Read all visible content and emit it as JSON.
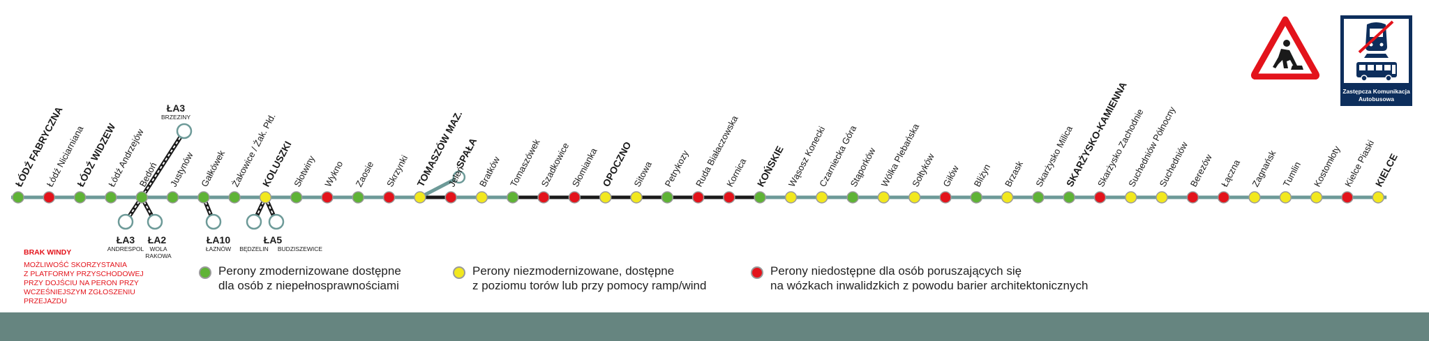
{
  "stations": [
    {
      "name": "ŁÓDŹ FABRYCZNA",
      "status": "green",
      "bold": true
    },
    {
      "name": "Łódź Niciarniana",
      "status": "red",
      "bold": false
    },
    {
      "name": "ŁÓDŹ WIDZEW",
      "status": "green",
      "bold": true
    },
    {
      "name": "Łódź Andrzejów",
      "status": "green",
      "bold": false
    },
    {
      "name": "Bedoń",
      "status": "green",
      "bold": false
    },
    {
      "name": "Justynów",
      "status": "green",
      "bold": false
    },
    {
      "name": "Gałkówek",
      "status": "green",
      "bold": false
    },
    {
      "name": "Żakowice / Żak. Płd.",
      "status": "green",
      "bold": false
    },
    {
      "name": "KOLUSZKI",
      "status": "yellow",
      "bold": true
    },
    {
      "name": "Słotwiny",
      "status": "green",
      "bold": false
    },
    {
      "name": "Wykno",
      "status": "red",
      "bold": false
    },
    {
      "name": "Zaosie",
      "status": "green",
      "bold": false
    },
    {
      "name": "Skrzynki",
      "status": "red",
      "bold": false
    },
    {
      "name": "TOMASZÓW MAZ.",
      "status": "yellow",
      "bold": true
    },
    {
      "name": "Jeleń",
      "status": "red",
      "bold": false
    },
    {
      "name": "Bratków",
      "status": "yellow",
      "bold": false
    },
    {
      "name": "Tomaszówek",
      "status": "green",
      "bold": false
    },
    {
      "name": "Szadkowice",
      "status": "red",
      "bold": false
    },
    {
      "name": "Słomianka",
      "status": "red",
      "bold": false
    },
    {
      "name": "OPOCZNO",
      "status": "yellow",
      "bold": true
    },
    {
      "name": "Sitowa",
      "status": "yellow",
      "bold": false
    },
    {
      "name": "Petrykozy",
      "status": "green",
      "bold": false
    },
    {
      "name": "Ruda Białaczowska",
      "status": "red",
      "bold": false
    },
    {
      "name": "Kornica",
      "status": "red",
      "bold": false
    },
    {
      "name": "KOŃSKIE",
      "status": "green",
      "bold": true
    },
    {
      "name": "Wąsosz Konecki",
      "status": "yellow",
      "bold": false
    },
    {
      "name": "Czarniecka Góra",
      "status": "yellow",
      "bold": false
    },
    {
      "name": "Stąporków",
      "status": "green",
      "bold": false
    },
    {
      "name": "Wólka Plebańska",
      "status": "yellow",
      "bold": false
    },
    {
      "name": "Sołtyków",
      "status": "yellow",
      "bold": false
    },
    {
      "name": "Giłów",
      "status": "red",
      "bold": false
    },
    {
      "name": "Bliżyn",
      "status": "green",
      "bold": false
    },
    {
      "name": "Brzask",
      "status": "yellow",
      "bold": false
    },
    {
      "name": "Skarżysko Milica",
      "status": "green",
      "bold": false
    },
    {
      "name": "SKARŻYSKO-KAMIENNA",
      "status": "green",
      "bold": true
    },
    {
      "name": "Skarżysko Zachodnie",
      "status": "red",
      "bold": false
    },
    {
      "name": "Suchedniów Północny",
      "status": "yellow",
      "bold": false
    },
    {
      "name": "Suchedniów",
      "status": "yellow",
      "bold": false
    },
    {
      "name": "Berezów",
      "status": "red",
      "bold": false
    },
    {
      "name": "Łączna",
      "status": "red",
      "bold": false
    },
    {
      "name": "Zagnańsk",
      "status": "yellow",
      "bold": false
    },
    {
      "name": "Tumlin",
      "status": "yellow",
      "bold": false
    },
    {
      "name": "Kostomłoty",
      "status": "yellow",
      "bold": false
    },
    {
      "name": "Kielce Piaski",
      "status": "red",
      "bold": false
    },
    {
      "name": "KIELCE",
      "status": "yellow",
      "bold": true
    }
  ],
  "branch_spala": {
    "name": "SPAŁA"
  },
  "connections": [
    {
      "code": "ŁA3",
      "dest": "BRZEZINY"
    },
    {
      "code": "ŁA3",
      "dest": "ANDRESPOL"
    },
    {
      "code": "ŁA2",
      "dest": "WOLA RAKOWA"
    },
    {
      "code": "ŁA10",
      "dest": "ŁAZNÓW"
    },
    {
      "code": "ŁA5",
      "dest_1": "BĘDZELIN",
      "dest_2": "BUDZISZEWICE"
    }
  ],
  "warning_note": {
    "title": "BRAK WINDY",
    "lines": [
      "MOŻLIWOŚĆ SKORZYSTANIA",
      "Z PLATFORMY PRZYSCHODOWEJ",
      "PRZY DOJŚCIU NA PERON PRZY",
      "WCZEŚNIEJSZYM ZGŁOSZENIU",
      "PRZEJAZDU"
    ]
  },
  "legend": [
    {
      "color": "#5fb336",
      "line1": "Perony zmodernizowane dostępne",
      "line2": "dla osób z niepełnosprawnościami"
    },
    {
      "color": "#f2e81e",
      "line1": "Perony niezmodernizowane, dostępne",
      "line2": "z poziomu torów lub przy pomocy ramp/wind"
    },
    {
      "color": "#e3131b",
      "line1": "Perony niedostępne dla osób poruszających się",
      "line2": "na wózkach inwalidzkich z powodu barier architektonicznych"
    }
  ],
  "bus_sign": {
    "line1": "Zastępcza Komunikacja",
    "line2": "Autobusowa"
  },
  "icons": {
    "warning": "roadworks-warning-icon",
    "train": "train-crossed-icon",
    "bus": "bus-icon"
  },
  "colors": {
    "green": "#5fb336",
    "yellow": "#f2e81e",
    "red": "#e3131b",
    "line_teal": "#6d9a98",
    "line_black": "#1a1a1a",
    "band": "#668580",
    "navy": "#0d2e5c"
  }
}
